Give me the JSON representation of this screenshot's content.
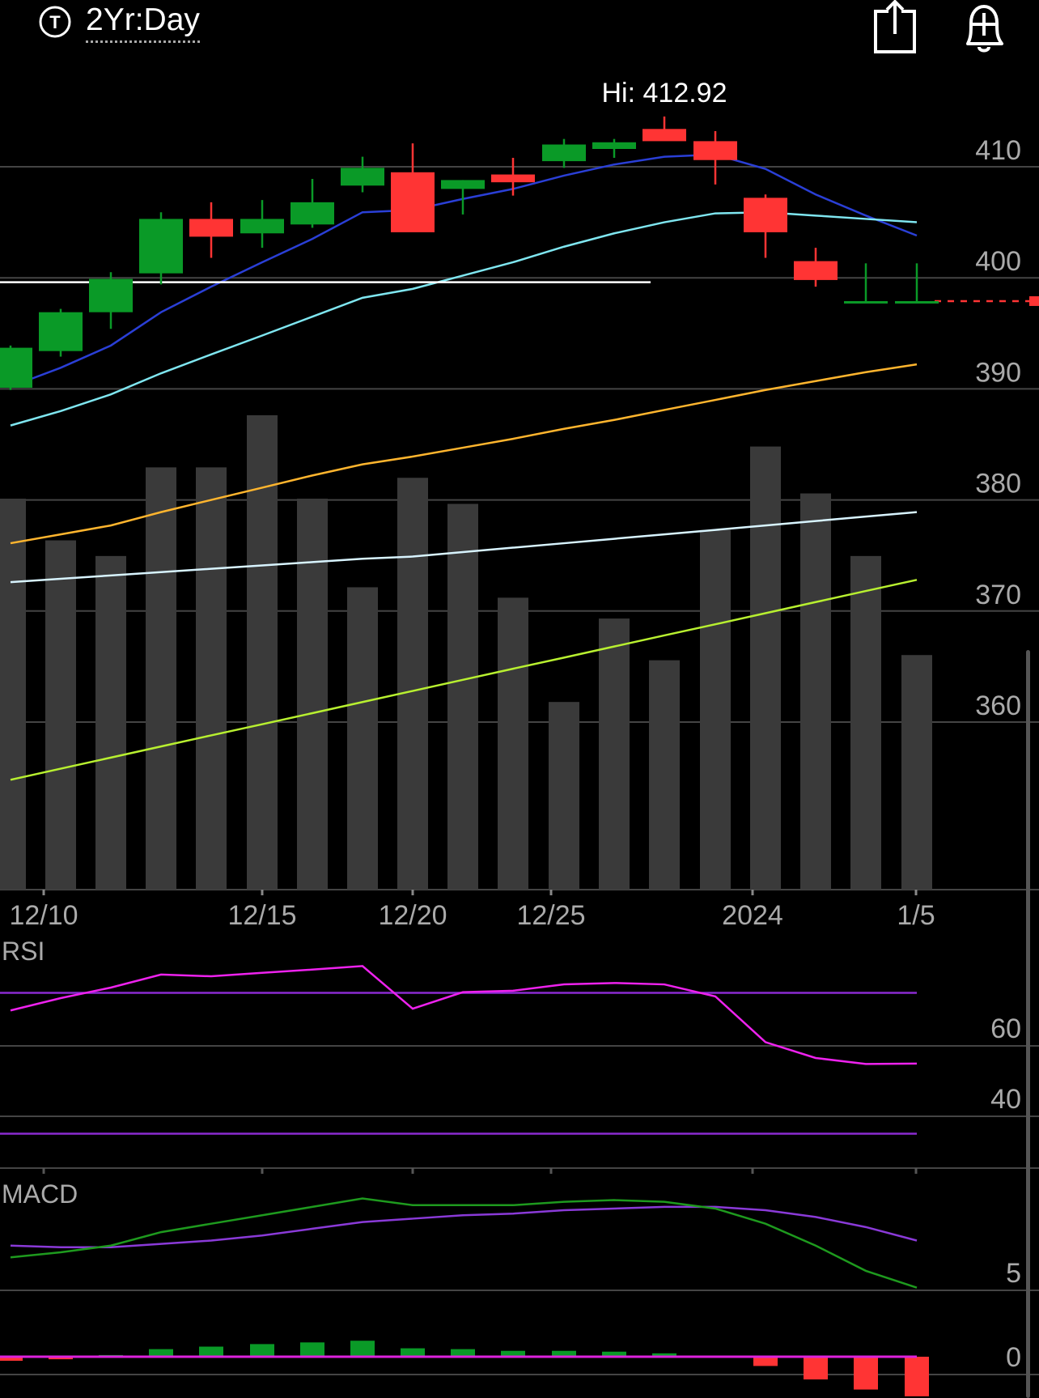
{
  "header": {
    "timeframe_label": "2Yr:Day",
    "timeframe_icon": "T",
    "share_icon": "share-icon",
    "alert_icon": "add-alert-bell-icon"
  },
  "hi_label": "Hi: 412.92",
  "colors": {
    "up": "#0a9a27",
    "down": "#ff3434",
    "volume": "#3a3a3a",
    "grid": "#444444",
    "ma_blue": "#2a3fd6",
    "ma_cyan": "#7fe6f0",
    "ma_orange": "#ffb52e",
    "ma_white": "#d8f4ff",
    "ma_lime": "#b8f030",
    "rsi_line": "#ee22ee",
    "rsi_band": "#8a2ad0",
    "macd_line": "#1e9a1e",
    "macd_signal": "#8a3ad8",
    "macd_zero": "#dd22dd"
  },
  "chart_data": [
    {
      "type": "candlestick",
      "x": [
        "12/8",
        "12/11",
        "12/12",
        "12/13",
        "12/14",
        "12/15",
        "12/18",
        "12/19",
        "12/20",
        "12/21",
        "12/22",
        "12/26",
        "12/27",
        "12/28",
        "12/29",
        "1/2",
        "1/3",
        "1/4",
        "1/5"
      ],
      "x_tick_labels": [
        "12/10",
        "12/15",
        "12/20",
        "12/25",
        "2024",
        "1/5"
      ],
      "ohlc": [
        [
          388.5,
          392.3,
          388.3,
          392.1
        ],
        [
          391.8,
          395.6,
          391.3,
          395.3
        ],
        [
          395.3,
          398.9,
          393.8,
          398.3
        ],
        [
          398.8,
          404.3,
          397.8,
          403.7
        ],
        [
          403.7,
          405.2,
          400.2,
          402.1
        ],
        [
          402.4,
          405.4,
          401.1,
          403.7
        ],
        [
          403.2,
          407.3,
          402.9,
          405.2
        ],
        [
          406.7,
          409.3,
          406.1,
          408.3
        ],
        [
          407.9,
          410.5,
          402.8,
          402.5
        ],
        [
          406.4,
          407.2,
          404.1,
          407.2
        ],
        [
          407.7,
          409.2,
          405.8,
          407.0
        ],
        [
          408.9,
          410.9,
          408.3,
          410.4
        ],
        [
          410.0,
          410.9,
          409.2,
          410.6
        ],
        [
          411.8,
          412.92,
          411.0,
          410.7
        ],
        [
          410.7,
          411.6,
          406.8,
          409.0
        ],
        [
          405.6,
          405.9,
          400.2,
          402.5
        ],
        [
          399.9,
          401.1,
          397.6,
          398.2
        ],
        [
          396.3,
          399.7,
          396.2,
          396.3
        ],
        [
          396.3,
          399.7,
          396.2,
          396.3
        ]
      ],
      "y_tick_labels": [
        410,
        400,
        390,
        380,
        370,
        360
      ],
      "ylim": [
        353,
        416
      ],
      "last_price_line": 396.3,
      "horizontal_level": 398.0,
      "volume_relative": [
        0.75,
        0.67,
        0.64,
        0.81,
        0.81,
        0.91,
        0.75,
        0.58,
        0.79,
        0.74,
        0.56,
        0.36,
        0.52,
        0.44,
        0.69,
        0.85,
        0.76,
        0.64,
        0.45
      ],
      "moving_averages": [
        {
          "values": [
            388.6,
            390.3,
            392.3,
            395.3,
            397.6,
            399.8,
            401.9,
            404.3,
            404.5,
            405.5,
            406.4,
            407.6,
            408.6,
            409.3,
            409.5,
            408.2,
            405.9,
            404.0,
            402.2
          ]
        },
        {
          "values": [
            385.1,
            386.4,
            387.9,
            389.8,
            391.5,
            393.2,
            394.9,
            396.6,
            397.4,
            398.6,
            399.8,
            401.2,
            402.4,
            403.4,
            404.2,
            404.3,
            404.0,
            403.7,
            403.4
          ]
        },
        {
          "values": [
            374.5,
            375.3,
            376.1,
            377.3,
            378.4,
            379.5,
            380.6,
            381.6,
            382.3,
            383.1,
            383.9,
            384.8,
            385.6,
            386.5,
            387.4,
            388.3,
            389.1,
            389.9,
            390.6
          ]
        },
        {
          "values": [
            371.0,
            371.3,
            371.6,
            371.9,
            372.2,
            372.5,
            372.8,
            373.1,
            373.3,
            373.7,
            374.1,
            374.5,
            374.9,
            375.3,
            375.7,
            376.1,
            376.5,
            376.9,
            377.3
          ]
        },
        {
          "values": [
            353.2,
            354.2,
            355.2,
            356.2,
            357.2,
            358.2,
            359.2,
            360.2,
            361.2,
            362.2,
            363.2,
            364.2,
            365.2,
            366.2,
            367.2,
            368.2,
            369.2,
            370.2,
            371.2
          ]
        }
      ]
    },
    {
      "type": "line",
      "title": "RSI",
      "y_tick_labels": [
        60,
        40
      ],
      "ylim": [
        25,
        80
      ],
      "bands": [
        70,
        30
      ],
      "values": [
        65,
        68.5,
        71.5,
        75.2,
        74.7,
        75.7,
        76.6,
        77.6,
        65.5,
        70.2,
        70.6,
        72.4,
        72.8,
        72.4,
        69,
        56,
        51.5,
        49.8,
        49.9
      ]
    },
    {
      "type": "line",
      "title": "MACD",
      "y_tick_labels": [
        5,
        0
      ],
      "ylim": [
        -2,
        12
      ],
      "macd": [
        5.9,
        6.2,
        6.6,
        7.4,
        7.9,
        8.4,
        8.9,
        9.4,
        9.0,
        9.0,
        9.0,
        9.2,
        9.3,
        9.2,
        8.8,
        7.9,
        6.6,
        5.1,
        4.1
      ],
      "signal": [
        6.6,
        6.5,
        6.5,
        6.7,
        6.9,
        7.2,
        7.6,
        8.0,
        8.2,
        8.4,
        8.5,
        8.7,
        8.8,
        8.9,
        8.9,
        8.7,
        8.3,
        7.7,
        6.9
      ],
      "histogram": [
        -0.24,
        -0.15,
        0.1,
        0.45,
        0.6,
        0.75,
        0.85,
        0.95,
        0.5,
        0.45,
        0.35,
        0.35,
        0.3,
        0.2,
        -0.05,
        -0.55,
        -1.35,
        -1.95,
        -2.35
      ]
    }
  ]
}
